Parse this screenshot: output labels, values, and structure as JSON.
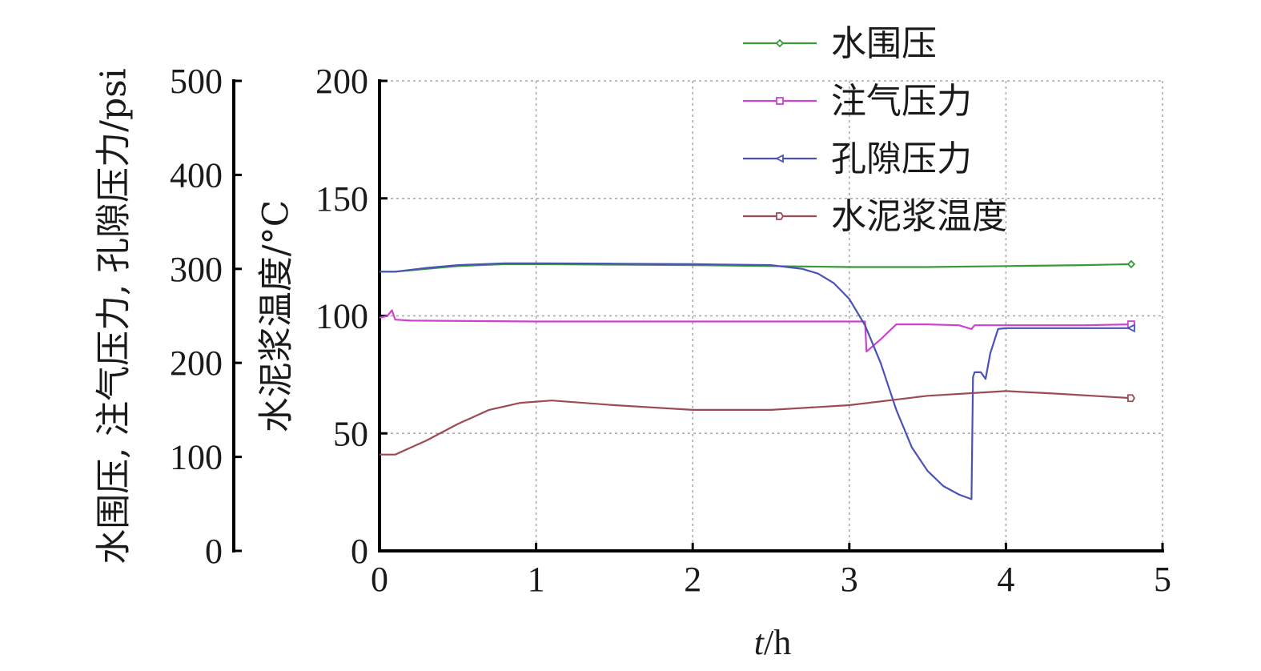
{
  "chart_data": {
    "type": "line",
    "xlabel_italic": "t",
    "xlabel_unit": "/h",
    "ylabel_left": "水围压, 注气压力, 孔隙压力/psi",
    "ylabel_right": "水泥浆温度/°C",
    "xlim": [
      0,
      5
    ],
    "xticks": [
      0,
      1,
      2,
      3,
      4,
      5
    ],
    "ylim_pressure": [
      0,
      500
    ],
    "yticks_pressure": [
      0,
      100,
      200,
      300,
      400,
      500
    ],
    "ylim_temperature": [
      0,
      200
    ],
    "yticks_temperature": [
      0,
      50,
      100,
      150,
      200
    ],
    "grid": true,
    "legend_position": "top-right",
    "series": [
      {
        "name": "水围压",
        "axis": "pressure",
        "color": "#3a9a3a",
        "marker": "diamond",
        "points": [
          [
            0,
            297
          ],
          [
            0.1,
            297
          ],
          [
            0.3,
            300
          ],
          [
            0.5,
            303
          ],
          [
            0.8,
            305
          ],
          [
            1.0,
            305
          ],
          [
            1.5,
            304.5
          ],
          [
            2.0,
            304
          ],
          [
            2.5,
            303
          ],
          [
            3.0,
            302
          ],
          [
            3.5,
            302
          ],
          [
            4.0,
            303
          ],
          [
            4.5,
            304
          ],
          [
            4.8,
            305
          ]
        ]
      },
      {
        "name": "注气压力",
        "axis": "pressure",
        "color": "#cc44cc",
        "marker": "square",
        "points": [
          [
            0,
            248
          ],
          [
            0.05,
            250
          ],
          [
            0.08,
            256
          ],
          [
            0.1,
            246
          ],
          [
            0.2,
            245
          ],
          [
            1.0,
            244
          ],
          [
            2.0,
            244
          ],
          [
            3.0,
            244
          ],
          [
            3.1,
            244
          ],
          [
            3.11,
            212
          ],
          [
            3.2,
            225
          ],
          [
            3.3,
            241
          ],
          [
            3.5,
            241
          ],
          [
            3.7,
            240
          ],
          [
            3.78,
            236
          ],
          [
            3.8,
            240
          ],
          [
            3.9,
            240
          ],
          [
            4.0,
            240
          ],
          [
            4.5,
            240
          ],
          [
            4.8,
            241
          ]
        ]
      },
      {
        "name": "孔隙压力",
        "axis": "pressure",
        "color": "#4a52b8",
        "marker": "triangle-left",
        "points": [
          [
            0,
            297
          ],
          [
            0.1,
            297
          ],
          [
            0.3,
            301
          ],
          [
            0.5,
            304
          ],
          [
            0.8,
            306
          ],
          [
            1.0,
            306
          ],
          [
            1.5,
            305.5
          ],
          [
            2.0,
            305
          ],
          [
            2.5,
            304
          ],
          [
            2.7,
            300
          ],
          [
            2.8,
            295
          ],
          [
            2.9,
            285
          ],
          [
            3.0,
            268
          ],
          [
            3.1,
            240
          ],
          [
            3.2,
            200
          ],
          [
            3.3,
            150
          ],
          [
            3.4,
            110
          ],
          [
            3.5,
            85
          ],
          [
            3.6,
            69
          ],
          [
            3.7,
            60
          ],
          [
            3.78,
            55
          ],
          [
            3.79,
            185
          ],
          [
            3.8,
            190
          ],
          [
            3.84,
            190
          ],
          [
            3.87,
            183
          ],
          [
            3.9,
            210
          ],
          [
            3.95,
            236
          ],
          [
            4.0,
            237
          ],
          [
            4.5,
            237
          ],
          [
            4.8,
            237
          ]
        ]
      },
      {
        "name": "水泥浆温度",
        "axis": "temperature",
        "color": "#9c4a54",
        "marker": "pentagon",
        "points": [
          [
            0,
            41
          ],
          [
            0.1,
            41
          ],
          [
            0.3,
            47
          ],
          [
            0.5,
            54
          ],
          [
            0.7,
            60
          ],
          [
            0.9,
            63
          ],
          [
            1.1,
            64
          ],
          [
            1.5,
            62
          ],
          [
            2.0,
            60
          ],
          [
            2.5,
            60
          ],
          [
            3.0,
            62
          ],
          [
            3.5,
            66
          ],
          [
            4.0,
            68
          ],
          [
            4.3,
            67
          ],
          [
            4.8,
            65
          ]
        ]
      }
    ]
  }
}
